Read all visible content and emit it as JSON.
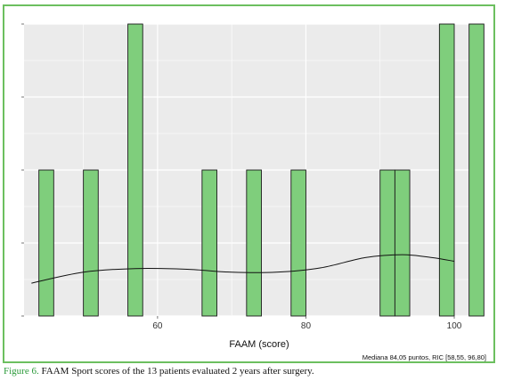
{
  "figure": {
    "note": "Mediana 84,05 puntos, RIC [58,55, 96,80]",
    "caption_label": "Figure 6.",
    "caption_text": " FAAM Sport scores of the 13 patients evaluated 2 years after surgery."
  },
  "colors": {
    "frame": "#6cbf5f",
    "panel": "#ebebeb",
    "grid": "#ffffff",
    "bar_fill": "#7fce7c",
    "bar_stroke": "#1a1a1a",
    "caption_label": "#2b9a3a"
  },
  "chart_data": {
    "type": "bar",
    "subtype": "histogram with density curve",
    "xlabel": "FAAM (score)",
    "ylabel": "",
    "xlim": [
      42,
      103
    ],
    "ylim": [
      0,
      4
    ],
    "x_ticks": [
      60,
      80,
      100
    ],
    "y_ticks": [
      0,
      1,
      2,
      3,
      4
    ],
    "y_tick_labels_visible": false,
    "grid": true,
    "bin_width": 2,
    "bars": [
      {
        "center": 45,
        "count": 2
      },
      {
        "center": 51,
        "count": 2
      },
      {
        "center": 57,
        "count": 4
      },
      {
        "center": 67,
        "count": 2
      },
      {
        "center": 73,
        "count": 2
      },
      {
        "center": 79,
        "count": 2
      },
      {
        "center": 91,
        "count": 2
      },
      {
        "center": 93,
        "count": 2
      },
      {
        "center": 99,
        "count": 4
      },
      {
        "center": 103,
        "count": 4
      }
    ],
    "density_curve": [
      {
        "x": 43,
        "y": 0.45
      },
      {
        "x": 50,
        "y": 0.6
      },
      {
        "x": 57,
        "y": 0.65
      },
      {
        "x": 64,
        "y": 0.64
      },
      {
        "x": 70,
        "y": 0.6
      },
      {
        "x": 76,
        "y": 0.6
      },
      {
        "x": 82,
        "y": 0.66
      },
      {
        "x": 88,
        "y": 0.8
      },
      {
        "x": 93,
        "y": 0.84
      },
      {
        "x": 97,
        "y": 0.8
      },
      {
        "x": 100,
        "y": 0.75
      }
    ]
  }
}
